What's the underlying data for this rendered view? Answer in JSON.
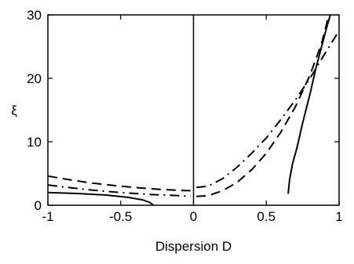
{
  "chart_data": {
    "type": "line",
    "title": "",
    "xlabel": "Dispersion D",
    "ylabel": "ξ",
    "xlim": [
      -1,
      1
    ],
    "ylim": [
      0,
      30
    ],
    "x_ticks": [
      -1,
      -0.5,
      0,
      0.5,
      1
    ],
    "x_tick_labels": [
      "-1",
      "-0.5",
      "0",
      "0.5",
      "1"
    ],
    "y_ticks": [
      0,
      10,
      20,
      30
    ],
    "y_tick_labels": [
      "0",
      "10",
      "20",
      "30"
    ],
    "grid": false,
    "legend": null,
    "reference_lines": [
      {
        "orientation": "vertical",
        "x": 0
      }
    ],
    "series": [
      {
        "style": "solid",
        "segments": [
          [
            [
              -1,
              2.0
            ],
            [
              -0.8,
              1.85
            ],
            [
              -0.6,
              1.6
            ],
            [
              -0.45,
              1.25
            ],
            [
              -0.35,
              0.85
            ],
            [
              -0.3,
              0.45
            ],
            [
              -0.28,
              0.1
            ],
            [
              -0.28,
              0
            ]
          ],
          [
            [
              0.65,
              1.8
            ],
            [
              0.66,
              4.0
            ],
            [
              0.68,
              6.5
            ],
            [
              0.71,
              9.0
            ],
            [
              0.75,
              13.0
            ],
            [
              0.8,
              17.5
            ],
            [
              0.84,
              21.5
            ],
            [
              0.88,
              25.0
            ],
            [
              0.92,
              28.5
            ],
            [
              0.94,
              30
            ]
          ]
        ]
      },
      {
        "style": "dashed",
        "segments": [
          [
            [
              -1,
              4.6
            ],
            [
              -0.9,
              4.2
            ],
            [
              -0.7,
              3.5
            ],
            [
              -0.5,
              3.0
            ],
            [
              -0.3,
              2.6
            ],
            [
              -0.1,
              2.35
            ],
            [
              -0.02,
              2.3
            ]
          ],
          [
            [
              0.02,
              1.4
            ],
            [
              0.1,
              1.5
            ],
            [
              0.2,
              2.3
            ],
            [
              0.3,
              3.6
            ],
            [
              0.4,
              5.6
            ],
            [
              0.5,
              8.2
            ],
            [
              0.6,
              11.5
            ],
            [
              0.7,
              15.5
            ],
            [
              0.8,
              20.5
            ],
            [
              0.88,
              25.5
            ],
            [
              0.93,
              30
            ]
          ]
        ]
      },
      {
        "style": "dashdot",
        "segments": [
          [
            [
              -1,
              3.2
            ],
            [
              -0.9,
              2.9
            ],
            [
              -0.7,
              2.4
            ],
            [
              -0.5,
              2.0
            ],
            [
              -0.3,
              1.7
            ],
            [
              -0.1,
              1.5
            ],
            [
              -0.02,
              1.45
            ]
          ],
          [
            [
              0.02,
              2.8
            ],
            [
              0.1,
              3.0
            ],
            [
              0.2,
              4.2
            ],
            [
              0.3,
              6.0
            ],
            [
              0.4,
              8.2
            ],
            [
              0.5,
              10.6
            ],
            [
              0.6,
              13.5
            ],
            [
              0.7,
              16.6
            ],
            [
              0.8,
              20.0
            ],
            [
              0.9,
              23.8
            ],
            [
              1.0,
              27.5
            ]
          ]
        ]
      }
    ]
  }
}
